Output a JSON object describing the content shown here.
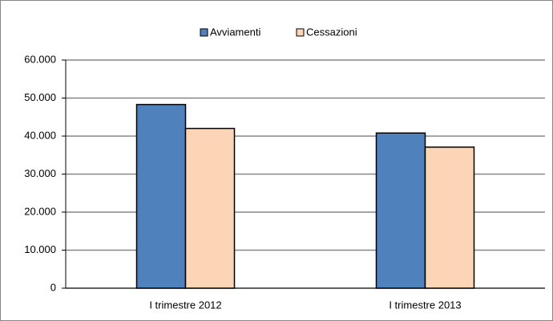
{
  "chart_data": {
    "type": "bar",
    "categories": [
      "I trimestre 2012",
      "I trimestre 2013"
    ],
    "series": [
      {
        "name": "Avviamenti",
        "color": "#4f81bd",
        "values": [
          48300,
          40800
        ]
      },
      {
        "name": "Cessazioni",
        "color": "#fbd5b5",
        "values": [
          42000,
          37100
        ]
      }
    ],
    "ylim": [
      0,
      60000
    ],
    "yticks": [
      0,
      {
        "value": 10000,
        "label": "10.000"
      },
      {
        "value": 20000,
        "label": "20.000"
      },
      {
        "value": 30000,
        "label": "30.000"
      },
      {
        "value": 40000,
        "label": "40.000"
      },
      {
        "value": 50000,
        "label": "50.000"
      },
      {
        "value": 60000,
        "label": "60.000"
      }
    ],
    "grid": true,
    "legend": "top"
  }
}
